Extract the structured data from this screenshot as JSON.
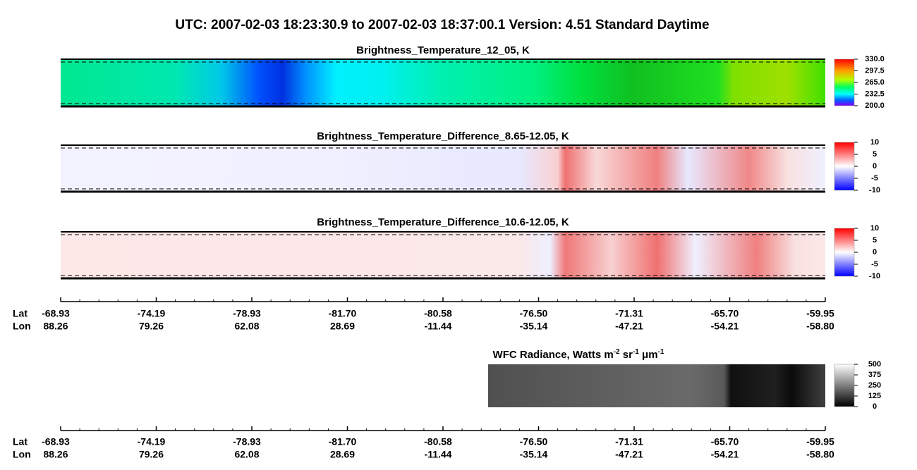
{
  "header": {
    "title": "UTC:  2007-02-03   18:23:30.9  to  2007-02-03   18:37:00.1    Version: 4.51  Standard Daytime"
  },
  "panels": [
    {
      "title": "Brightness_Temperature_12_05, K",
      "colorbar": [
        "330.0",
        "297.5",
        "265.0",
        "232.5",
        "200.0"
      ]
    },
    {
      "title": "Brightness_Temperature_Difference_8.65-12.05, K",
      "colorbar": [
        "10",
        "5",
        "0",
        "-5",
        "-10"
      ]
    },
    {
      "title": "Brightness_Temperature_Difference_10.6-12.05, K",
      "colorbar": [
        "10",
        "5",
        "0",
        "-5",
        "-10"
      ]
    },
    {
      "title_parts": [
        {
          "text": "WFC Radiance, Watts m",
          "sup": "-2"
        },
        {
          "text": " sr",
          "sup": "-1"
        },
        {
          "text": " μm",
          "sup": "-1"
        }
      ],
      "colorbar": [
        "500",
        "375",
        "250",
        "125",
        "0"
      ]
    }
  ],
  "axis": {
    "lat_label": "Lat",
    "lon_label": "Lon",
    "lat": [
      "-68.93",
      "-74.19",
      "-78.93",
      "-81.70",
      "-80.58",
      "-76.50",
      "-71.31",
      "-65.70",
      "-59.95"
    ],
    "lon": [
      "88.26",
      "79.26",
      "62.08",
      "28.69",
      "-11.44",
      "-35.14",
      "-47.21",
      "-54.21",
      "-58.80"
    ]
  }
}
